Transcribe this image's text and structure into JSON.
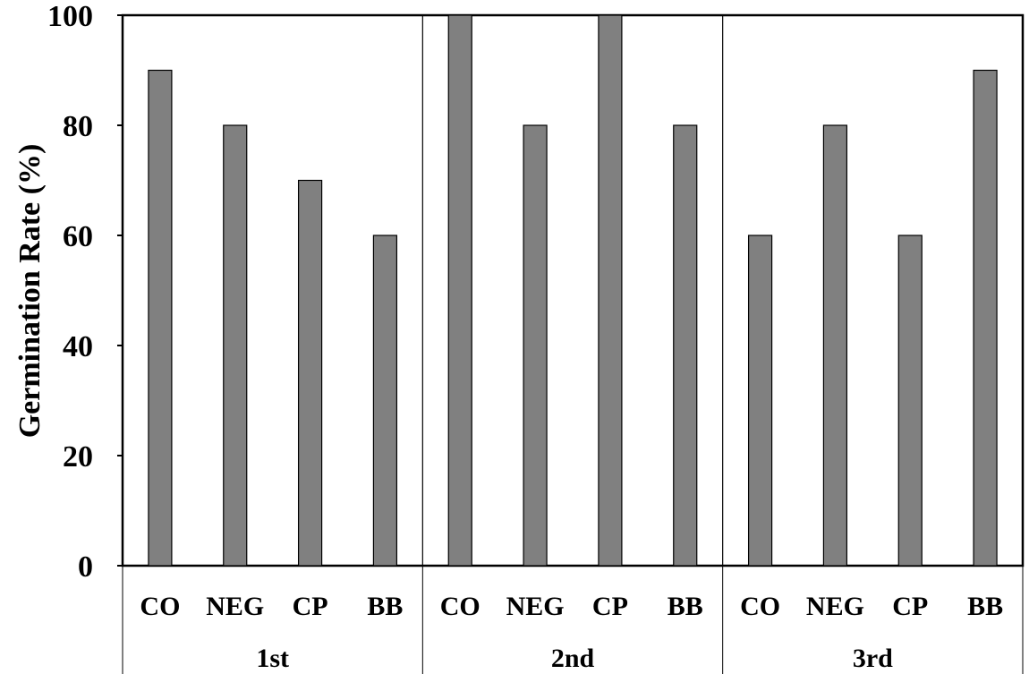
{
  "chart_data": {
    "type": "bar",
    "title": "",
    "xlabel": "",
    "ylabel": "Germination Rate (%)",
    "ylim": [
      0,
      100
    ],
    "yticks": [
      0,
      20,
      40,
      60,
      80,
      100
    ],
    "grid": false,
    "legend": "none",
    "bar_color": "#808080",
    "groups": [
      {
        "label": "1st",
        "categories": [
          "CO",
          "NEG",
          "CP",
          "BB"
        ],
        "values": [
          90,
          80,
          70,
          60
        ]
      },
      {
        "label": "2nd",
        "categories": [
          "CO",
          "NEG",
          "CP",
          "BB"
        ],
        "values": [
          100,
          80,
          100,
          80
        ]
      },
      {
        "label": "3rd",
        "categories": [
          "CO",
          "NEG",
          "CP",
          "BB"
        ],
        "values": [
          60,
          80,
          60,
          90
        ]
      }
    ]
  }
}
